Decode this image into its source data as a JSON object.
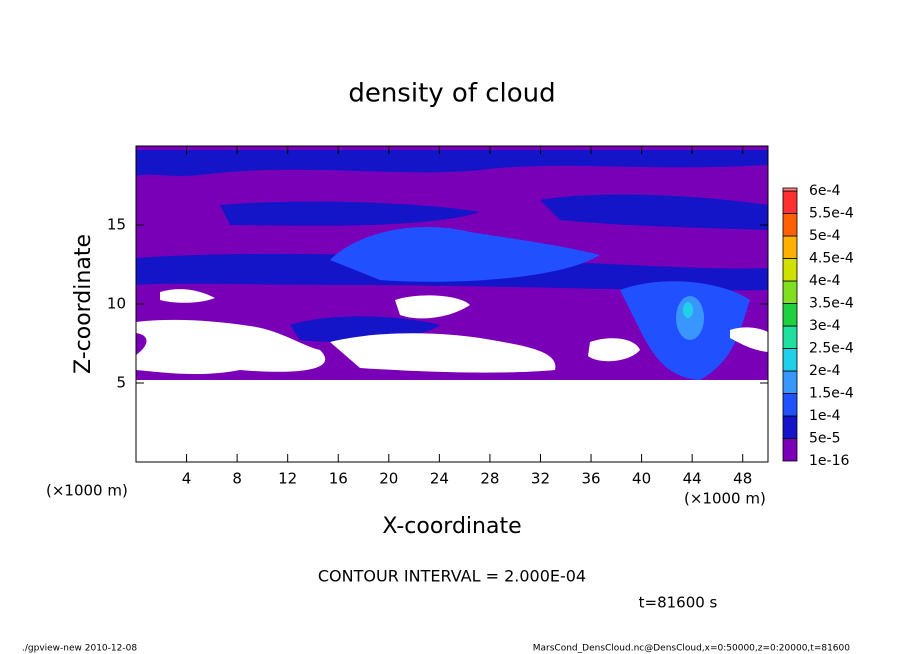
{
  "chart_data": {
    "type": "contour",
    "title": "density of cloud",
    "xlabel": "X-coordinate",
    "ylabel": "Z-coordinate",
    "x_unit_left": "(×1000 m)",
    "x_unit_right": "(×1000 m)",
    "xlim": [
      0,
      50
    ],
    "xticks": [
      4,
      8,
      12,
      16,
      20,
      24,
      28,
      32,
      36,
      40,
      44,
      48
    ],
    "ylim": [
      0,
      20
    ],
    "yticks": [
      5,
      10,
      15
    ],
    "levels": [
      {
        "value": 1e-16,
        "label": "1e-16"
      },
      {
        "value": 5e-05,
        "label": "5e-5"
      },
      {
        "value": 0.0001,
        "label": "1e-4"
      },
      {
        "value": 0.00015,
        "label": "1.5e-4"
      },
      {
        "value": 0.0002,
        "label": "2e-4"
      },
      {
        "value": 0.00025,
        "label": "2.5e-4"
      },
      {
        "value": 0.0003,
        "label": "3e-4"
      },
      {
        "value": 0.00035,
        "label": "3.5e-4"
      },
      {
        "value": 0.0004,
        "label": "4e-4"
      },
      {
        "value": 0.00045,
        "label": "4.5e-4"
      },
      {
        "value": 0.0005,
        "label": "5e-4"
      },
      {
        "value": 0.00055,
        "label": "5.5e-4"
      },
      {
        "value": 0.0006,
        "label": "6e-4"
      }
    ],
    "colors": [
      "#7a00b8",
      "#1414c8",
      "#2050ff",
      "#3a96ff",
      "#20d0e8",
      "#20e0a0",
      "#20d040",
      "#80e020",
      "#d0e000",
      "#ffb000",
      "#ff6000",
      "#ff3030",
      "#ff8080"
    ],
    "contour_interval": "CONTOUR INTERVAL = 2.000E-04",
    "time": "t=81600 s",
    "footer_left": "./gpview-new  2010-12-08",
    "footer_right": "MarsCond_DensCloud.nc@DensCloud,x=0:50000,z=0:20000,t=81600"
  }
}
